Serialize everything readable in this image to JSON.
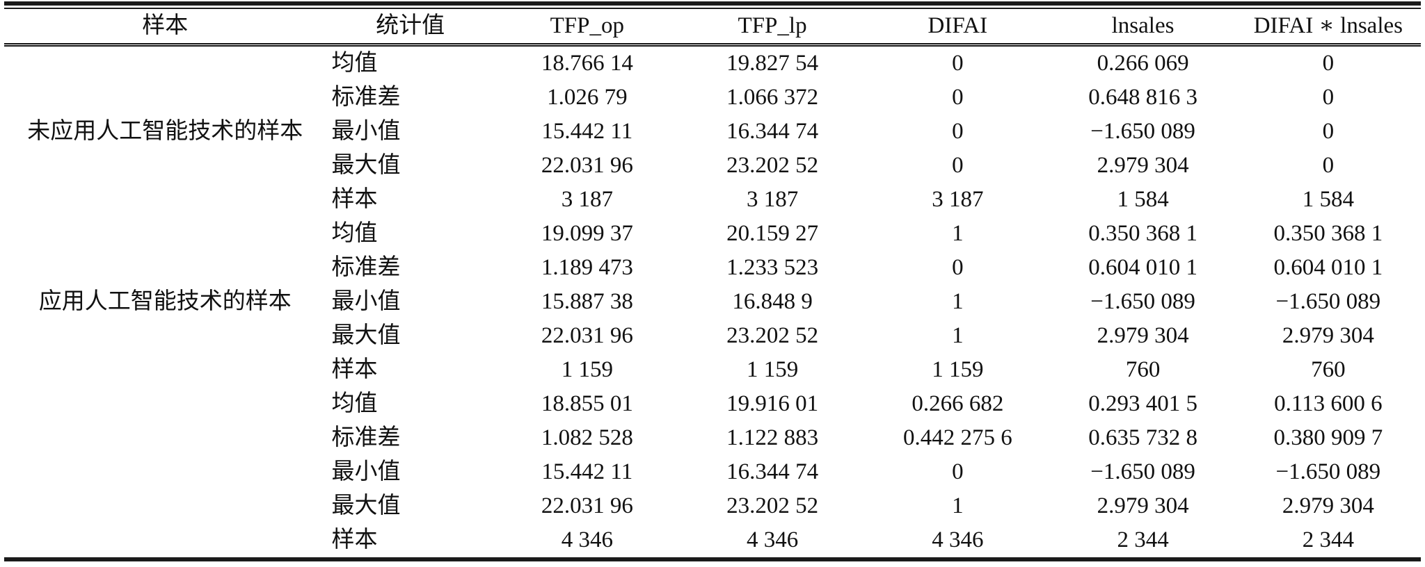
{
  "table": {
    "columns": [
      {
        "key": "group",
        "label": "样本"
      },
      {
        "key": "stat",
        "label": "统计值"
      },
      {
        "key": "tfp_op",
        "label": "TFP_op"
      },
      {
        "key": "tfp_lp",
        "label": "TFP_lp"
      },
      {
        "key": "difai",
        "label": "DIFAI"
      },
      {
        "key": "lnsales",
        "label": "lnsales"
      },
      {
        "key": "difai_lnsales",
        "label": "DIFAI ∗ lnsales"
      }
    ],
    "groups": [
      {
        "label": "未应用人工智能技术的样本",
        "rows": [
          {
            "stat": "均值",
            "tfp_op": "18.766 14",
            "tfp_lp": "19.827 54",
            "difai": "0",
            "lnsales": "0.266 069",
            "difai_lnsales": "0"
          },
          {
            "stat": "标准差",
            "tfp_op": "1.026 79",
            "tfp_lp": "1.066 372",
            "difai": "0",
            "lnsales": "0.648 816 3",
            "difai_lnsales": "0"
          },
          {
            "stat": "最小值",
            "tfp_op": "15.442 11",
            "tfp_lp": "16.344 74",
            "difai": "0",
            "lnsales": "−1.650 089",
            "difai_lnsales": "0"
          },
          {
            "stat": "最大值",
            "tfp_op": "22.031 96",
            "tfp_lp": "23.202 52",
            "difai": "0",
            "lnsales": "2.979 304",
            "difai_lnsales": "0"
          },
          {
            "stat": "样本",
            "tfp_op": "3 187",
            "tfp_lp": "3 187",
            "difai": "3 187",
            "lnsales": "1 584",
            "difai_lnsales": "1 584"
          }
        ]
      },
      {
        "label": "应用人工智能技术的样本",
        "rows": [
          {
            "stat": "均值",
            "tfp_op": "19.099 37",
            "tfp_lp": "20.159 27",
            "difai": "1",
            "lnsales": "0.350 368 1",
            "difai_lnsales": "0.350 368 1"
          },
          {
            "stat": "标准差",
            "tfp_op": "1.189 473",
            "tfp_lp": "1.233 523",
            "difai": "0",
            "lnsales": "0.604 010 1",
            "difai_lnsales": "0.604 010 1"
          },
          {
            "stat": "最小值",
            "tfp_op": "15.887 38",
            "tfp_lp": "16.848 9",
            "difai": "1",
            "lnsales": "−1.650 089",
            "difai_lnsales": "−1.650 089"
          },
          {
            "stat": "最大值",
            "tfp_op": "22.031 96",
            "tfp_lp": "23.202 52",
            "difai": "1",
            "lnsales": "2.979 304",
            "difai_lnsales": "2.979 304"
          },
          {
            "stat": "样本",
            "tfp_op": "1 159",
            "tfp_lp": "1 159",
            "difai": "1 159",
            "lnsales": "760",
            "difai_lnsales": "760"
          }
        ]
      },
      {
        "label": "",
        "rows": [
          {
            "stat": "均值",
            "tfp_op": "18.855 01",
            "tfp_lp": "19.916 01",
            "difai": "0.266 682",
            "lnsales": "0.293 401 5",
            "difai_lnsales": "0.113 600 6"
          },
          {
            "stat": "标准差",
            "tfp_op": "1.082 528",
            "tfp_lp": "1.122 883",
            "difai": "0.442 275 6",
            "lnsales": "0.635 732 8",
            "difai_lnsales": "0.380 909 7"
          },
          {
            "stat": "最小值",
            "tfp_op": "15.442 11",
            "tfp_lp": "16.344 74",
            "difai": "0",
            "lnsales": "−1.650 089",
            "difai_lnsales": "−1.650 089"
          },
          {
            "stat": "最大值",
            "tfp_op": "22.031 96",
            "tfp_lp": "23.202 52",
            "difai": "1",
            "lnsales": "2.979 304",
            "difai_lnsales": "2.979 304"
          },
          {
            "stat": "样本",
            "tfp_op": "4 346",
            "tfp_lp": "4 346",
            "difai": "4 346",
            "lnsales": "2 344",
            "difai_lnsales": "2 344"
          }
        ]
      }
    ]
  },
  "colors": {
    "text": "#111111",
    "rule": "#1a1a1a",
    "background": "#ffffff"
  }
}
